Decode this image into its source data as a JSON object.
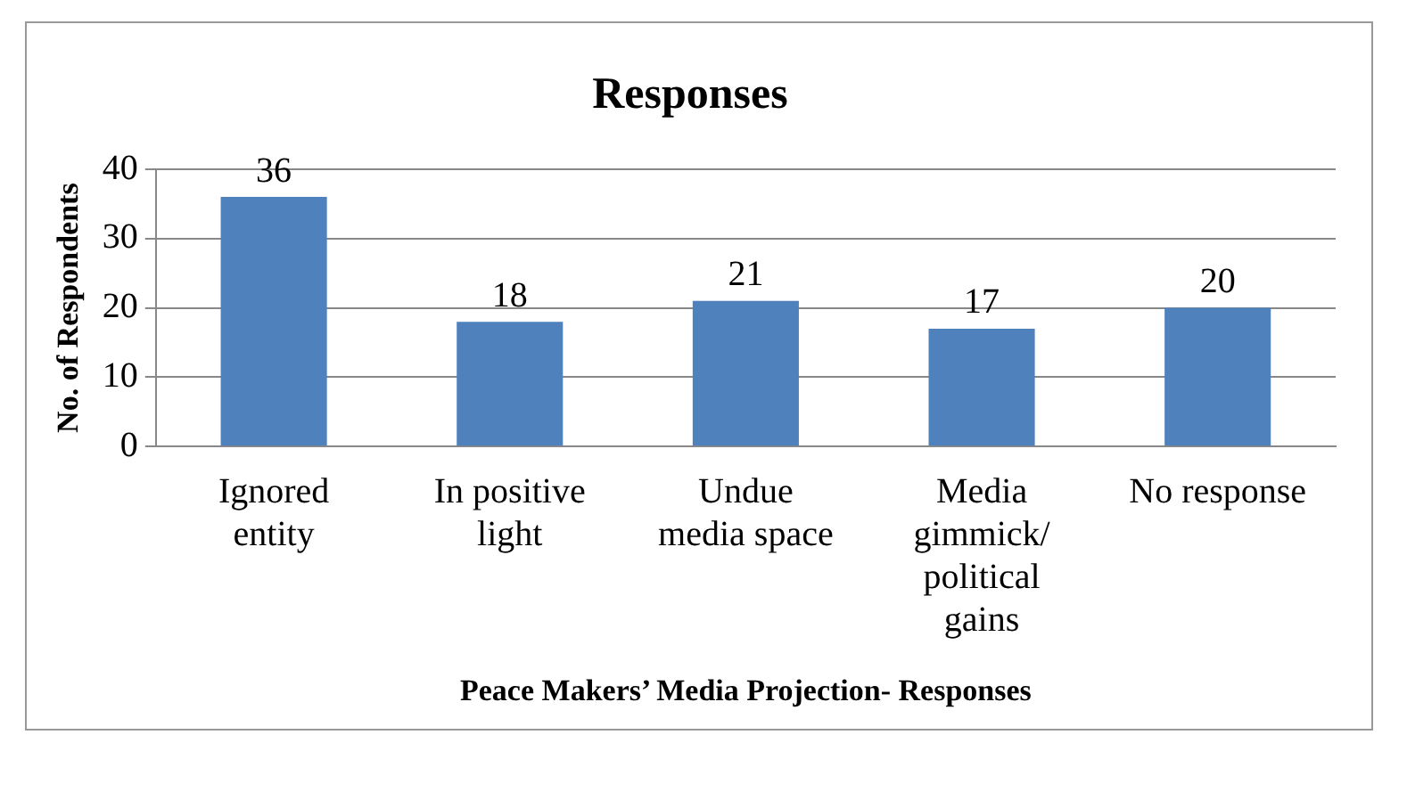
{
  "chart_data": {
    "type": "bar",
    "title": "Responses",
    "xlabel": "Peace Makers’ Media Projection- Responses",
    "ylabel": "No. of Respondents",
    "categories": [
      "Ignored entity",
      "In positive light",
      "Undue media space",
      "Media gimmick/ political gains",
      "No response"
    ],
    "values": [
      36,
      18,
      21,
      17,
      20
    ],
    "color": "#4f81bd",
    "ylim": [
      0,
      40
    ],
    "yticks": [
      0,
      10,
      20,
      30,
      40
    ],
    "grid": "y",
    "data_labels": true
  }
}
